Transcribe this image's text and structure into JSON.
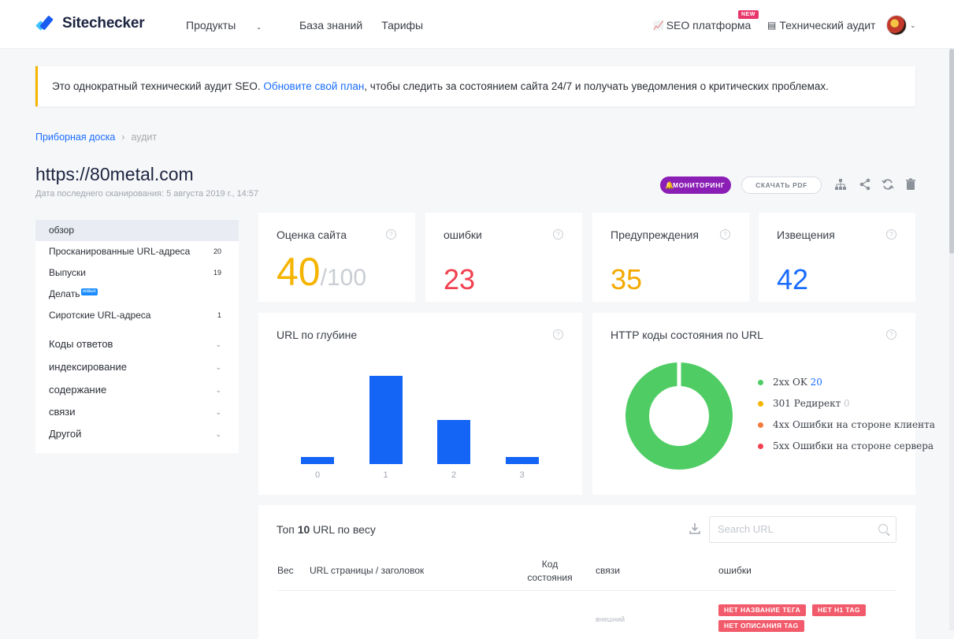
{
  "header": {
    "logo_text": "Sitechecker",
    "nav": [
      "Продукты",
      "База знаний",
      "Тарифы"
    ],
    "seo_platform": "SEO платформа",
    "new_badge": "NEW",
    "tech_audit": "Технический аудит"
  },
  "notice": {
    "prefix": "Это однократный технический аудит SEO. ",
    "link": "Обновите свой план",
    "suffix": ", чтобы следить за состоянием сайта 24/7 и получать уведомления о критических проблемах."
  },
  "breadcrumb": {
    "home": "Приборная доска",
    "sep": "›",
    "current": "аудит"
  },
  "site": {
    "url": "https://80metal.com",
    "scan_date": "Дата последнего сканирования: 5 августа 2019 г., 14:57"
  },
  "actions": {
    "monitoring": "МОНИТОРИНГ",
    "download_pdf": "СКАЧАТЬ PDF"
  },
  "sidebar": {
    "items": [
      {
        "label": "обзор",
        "count": ""
      },
      {
        "label": "Просканированные URL-адреса",
        "count": "20"
      },
      {
        "label": "Выпуски",
        "count": "19"
      },
      {
        "label": "Делать",
        "count": "",
        "badge": "новых"
      },
      {
        "label": "Сиротские URL-адреса",
        "count": "1"
      }
    ],
    "groups": [
      "Коды ответов",
      "индексирование",
      "содержание",
      "связи",
      "Другой"
    ]
  },
  "stats": {
    "score_label": "Оценка сайта",
    "score_value": "40",
    "score_max": "/100",
    "errors_label": "ошибки",
    "errors_value": "23",
    "warnings_label": "Предупреждения",
    "warnings_value": "35",
    "notices_label": "Извещения",
    "notices_value": "42"
  },
  "colors": {
    "score": "#f5b400",
    "errors": "#f2404f",
    "warnings": "#f5a800",
    "notices": "#1a6dff",
    "bar": "#1464f6"
  },
  "depth_chart": {
    "title": "URL по глубине",
    "chart_data": {
      "type": "bar",
      "categories": [
        "0",
        "1",
        "2",
        "3"
      ],
      "values": [
        1,
        12,
        6,
        1
      ],
      "ylim": [
        0,
        12
      ]
    }
  },
  "status_chart": {
    "title": "HTTP коды состояния по URL",
    "chart_data": {
      "type": "pie",
      "slices": [
        {
          "label": "2xx OK",
          "value": 20,
          "color": "#4fcd64"
        },
        {
          "label": "301 Редирект",
          "value": 0,
          "color": "#f5b400"
        },
        {
          "label": "4xx Ошибки на стороне клиента",
          "value": "",
          "color": "#f47a3c"
        },
        {
          "label": "5xx Ошибки на стороне сервера",
          "value": "",
          "color": "#f2404f"
        }
      ]
    }
  },
  "table": {
    "title_prefix": "Топ ",
    "title_bold": "10",
    "title_suffix": " URL по весу",
    "search_placeholder": "Search URL",
    "columns": {
      "weight": "Вес",
      "url": "URL страницы / заголовок",
      "code_1": "Код",
      "code_2": "состояния",
      "links": "связи",
      "errors": "ошибки"
    },
    "row": {
      "link_type": "внешний",
      "tags": [
        "НЕТ НАЗВАНИЕ ТЕГА",
        "НЕТ H1 TAG",
        "НЕТ ОПИСАНИЯ TAG"
      ]
    }
  }
}
